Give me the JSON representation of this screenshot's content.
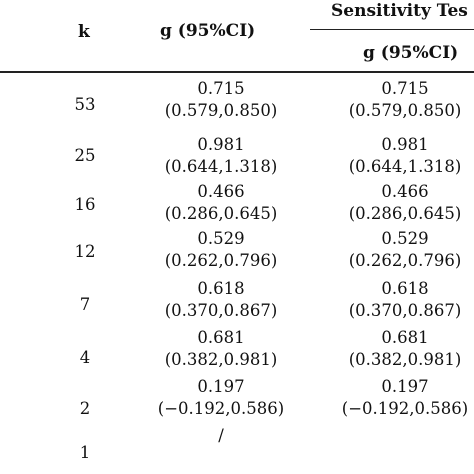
{
  "table": {
    "headers": {
      "k": "k",
      "g": "g (95%CI)",
      "sensitivity": "Sensitivity Tes",
      "sensitivity_g": "g (95%CI)"
    },
    "rows": [
      {
        "k": "53",
        "g_val": "0.715",
        "g_ci": "(0.579,0.850)",
        "s_val": "0.715",
        "s_ci": "(0.579,0.850)"
      },
      {
        "k": "25",
        "g_val": "0.981",
        "g_ci": "(0.644,1.318)",
        "s_val": "0.981",
        "s_ci": "(0.644,1.318)"
      },
      {
        "k": "16",
        "g_val": "0.466",
        "g_ci": "(0.286,0.645)",
        "s_val": "0.466",
        "s_ci": "(0.286,0.645)"
      },
      {
        "k": "12",
        "g_val": "0.529",
        "g_ci": "(0.262,0.796)",
        "s_val": "0.529",
        "s_ci": "(0.262,0.796)"
      },
      {
        "k": "7",
        "g_val": "0.618",
        "g_ci": "(0.370,0.867)",
        "s_val": "0.618",
        "s_ci": "(0.370,0.867)"
      },
      {
        "k": "4",
        "g_val": "0.681",
        "g_ci": "(0.382,0.981)",
        "s_val": "0.681",
        "s_ci": "(0.382,0.981)"
      },
      {
        "k": "2",
        "g_val": "0.197",
        "g_ci": "(−0.192,0.586)",
        "s_val": "0.197",
        "s_ci": "(−0.192,0.586)"
      },
      {
        "k": "1",
        "g_val": "/",
        "g_ci": "",
        "s_val": "",
        "s_ci": ""
      }
    ]
  }
}
